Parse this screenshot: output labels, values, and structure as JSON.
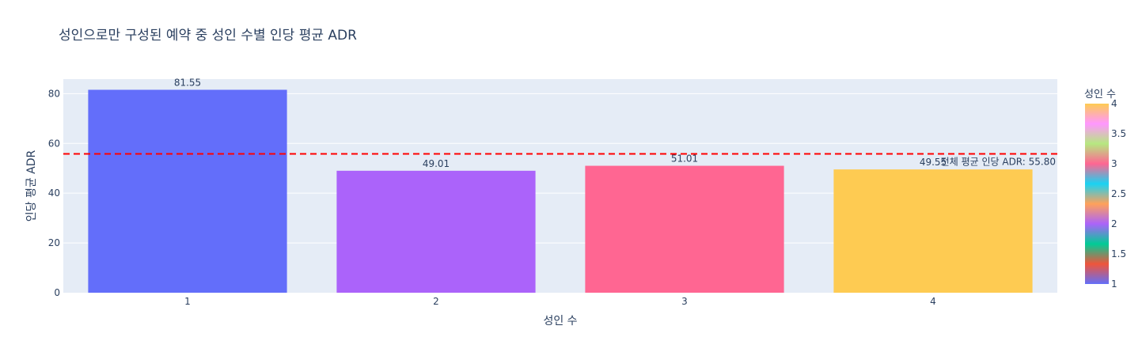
{
  "chart_data": {
    "type": "bar",
    "title": "성인으로만 구성된 예약 중 성인 수별 인당 평균 ADR",
    "xlabel": "성인 수",
    "ylabel": "인당 평균 ADR",
    "categories": [
      "1",
      "2",
      "3",
      "4"
    ],
    "values": [
      81.55,
      49.01,
      51.01,
      49.55
    ],
    "value_labels": [
      "81.55",
      "49.01",
      "51.01",
      "49.55"
    ],
    "bar_colors": [
      "#636efa",
      "#ab63fa",
      "#ff6692",
      "#fecb52"
    ],
    "ylim": [
      0,
      85.84
    ],
    "yticks": [
      0,
      20,
      40,
      60,
      80
    ],
    "ytick_labels": [
      "0",
      "20",
      "40",
      "60",
      "80"
    ],
    "grid": true,
    "plot_bgcolor": "#e5ecf6",
    "reference_line": {
      "value": 55.8,
      "label": "전체 평균 인당 ADR: 55.80",
      "color": "#ff0000",
      "style": "dashed"
    },
    "colorbar": {
      "title": "성인 수",
      "range": [
        1,
        4
      ],
      "ticks": [
        1,
        1.5,
        2,
        2.5,
        3,
        3.5,
        4
      ],
      "tick_labels": [
        "1",
        "1.5",
        "2",
        "2.5",
        "3",
        "3.5",
        "4"
      ],
      "colors": [
        "#636efa",
        "#ef553b",
        "#00cc96",
        "#ab63fa",
        "#ffa15a",
        "#19d3f3",
        "#ff6692",
        "#b6e880",
        "#ff97ff",
        "#fecb52"
      ],
      "placement": "right"
    }
  }
}
